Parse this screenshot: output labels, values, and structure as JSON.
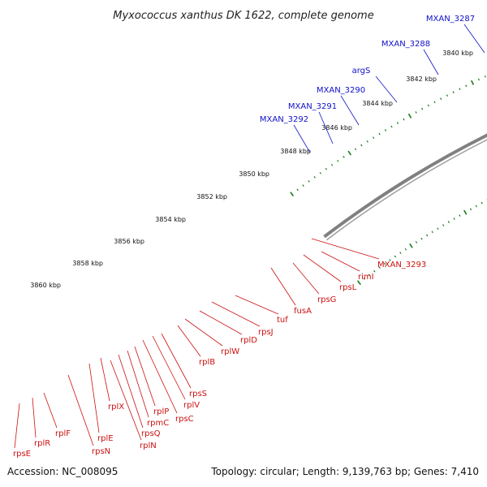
{
  "title": "Myxococcus xanthus DK 1622, complete genome",
  "footer": {
    "accession": "Accession: NC_008095",
    "summary": "Topology: circular; Length: 9,139,763 bp; Genes: 7,410"
  },
  "colors": {
    "backbone": "#808080",
    "forward_blue": "#0a0ad2",
    "forward_violet": "#7b6fcf",
    "pink": "#f08080",
    "green": "#33c133",
    "olive": "#b5ae6e",
    "grey_gene": "#b8b8b8",
    "red": "#ee1111",
    "red_light": "#f6a0a0",
    "tick": "#1a7a1a"
  },
  "kbp_labels": [
    "3840 kbp",
    "3842 kbp",
    "3844 kbp",
    "3846 kbp",
    "3848 kbp",
    "3850 kbp",
    "3852 kbp",
    "3854 kbp",
    "3856 kbp",
    "3858 kbp",
    "3860 kbp"
  ],
  "outer_gene_labels": [
    "MXAN_3287",
    "MXAN_3288",
    "argS",
    "MXAN_3290",
    "MXAN_3291",
    "MXAN_3292"
  ],
  "inner_gene_labels": [
    "MXAN_3293",
    "rimI",
    "rpsL",
    "rpsG",
    "fusA",
    "tuf",
    "rpsJ",
    "rplD",
    "rplW",
    "rplB",
    "rpsS",
    "rplV",
    "rpsC",
    "rplP",
    "rpmC",
    "rpsQ",
    "rplX",
    "rplN",
    "rplE",
    "rpsN",
    "rplF",
    "rplR",
    "rpsE"
  ]
}
